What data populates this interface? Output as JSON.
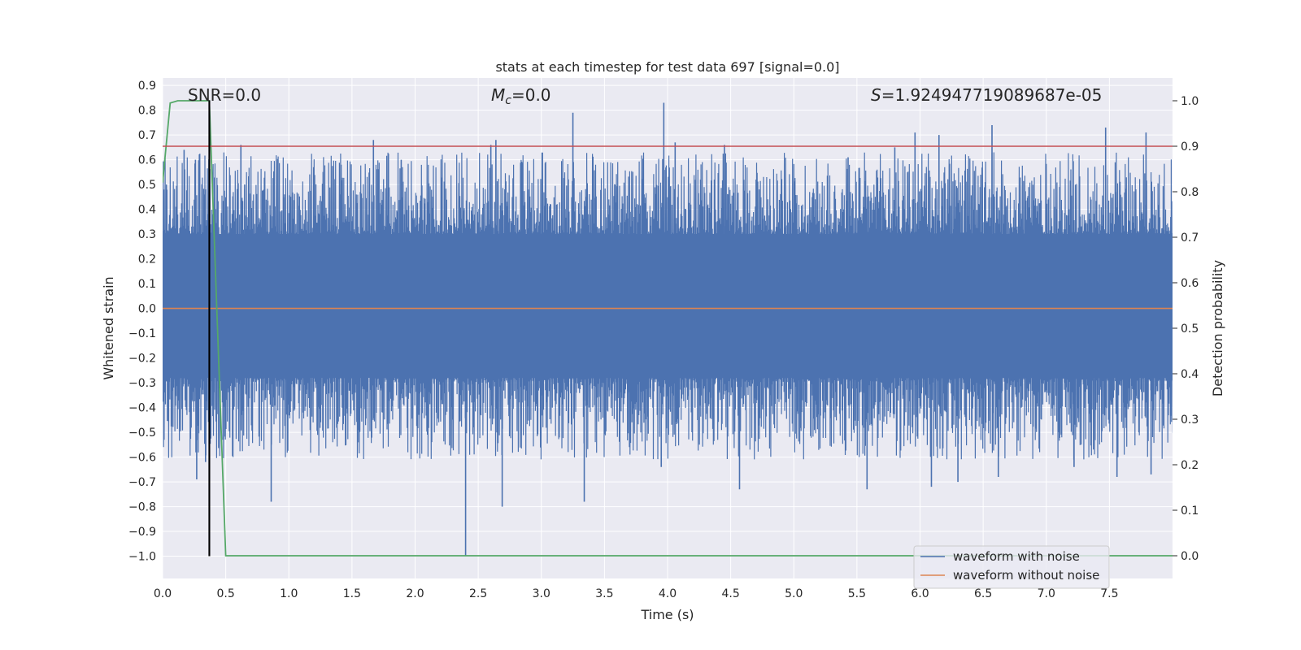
{
  "chart_data": {
    "type": "line",
    "title": "stats at each timestep for test data 697 [signal=0.0]",
    "xlabel": "Time (s)",
    "ylabel": "Whitened strain",
    "y2label": "Detection probability",
    "xlim": [
      0.0,
      8.0
    ],
    "ylim": [
      -1.09,
      0.93
    ],
    "y2lim": [
      -0.05,
      1.05
    ],
    "xticks": [
      0.0,
      0.5,
      1.0,
      1.5,
      2.0,
      2.5,
      3.0,
      3.5,
      4.0,
      4.5,
      5.0,
      5.5,
      6.0,
      6.5,
      7.0,
      7.5
    ],
    "xtick_labels": [
      "0.0",
      "0.5",
      "1.0",
      "1.5",
      "2.0",
      "2.5",
      "3.0",
      "3.5",
      "4.0",
      "4.5",
      "5.0",
      "5.5",
      "6.0",
      "6.5",
      "7.0",
      "7.5"
    ],
    "yticks": [
      0.9,
      0.8,
      0.7,
      0.6,
      0.5,
      0.4,
      0.3,
      0.2,
      0.1,
      0.0,
      -0.1,
      -0.2,
      -0.3,
      -0.4,
      -0.5,
      -0.6,
      -0.7,
      -0.8,
      -0.9,
      -1.0
    ],
    "ytick_labels": [
      "0.9",
      "0.8",
      "0.7",
      "0.6",
      "0.5",
      "0.4",
      "0.3",
      "0.2",
      "0.1",
      "0.0",
      "−0.1",
      "−0.2",
      "−0.3",
      "−0.4",
      "−0.5",
      "−0.6",
      "−0.7",
      "−0.8",
      "−0.9",
      "−1.0"
    ],
    "y2ticks": [
      1.0,
      0.9,
      0.8,
      0.7,
      0.6,
      0.5,
      0.4,
      0.3,
      0.2,
      0.1,
      0.0
    ],
    "y2tick_labels": [
      "1.0",
      "0.9",
      "0.8",
      "0.7",
      "0.6",
      "0.5",
      "0.4",
      "0.3",
      "0.2",
      "0.1",
      "0.0"
    ],
    "annotations": {
      "snr": "SNR=0.0",
      "mc_symbol": "M",
      "mc_sub": "c",
      "mc_value": "=0.0",
      "s_symbol": "S",
      "s_value": "=1.924947719089687e-05"
    },
    "series": [
      {
        "name": "waveform with noise",
        "color": "#4c72b0",
        "kind": "noise",
        "duration": 8.0,
        "band_low": -0.28,
        "band_high": 0.3,
        "peaks": [
          [
            0.03,
            0.5
          ],
          [
            0.17,
            0.64
          ],
          [
            0.26,
            0.6
          ],
          [
            0.62,
            0.66
          ],
          [
            0.65,
            0.5
          ],
          [
            1.67,
            0.68
          ],
          [
            1.89,
            0.6
          ],
          [
            2.64,
            0.68
          ],
          [
            2.6,
            0.66
          ],
          [
            3.25,
            0.79
          ],
          [
            3.97,
            0.83
          ],
          [
            4.06,
            0.67
          ],
          [
            4.45,
            0.66
          ],
          [
            5.43,
            0.61
          ],
          [
            5.8,
            0.65
          ],
          [
            5.96,
            0.71
          ],
          [
            6.15,
            0.7
          ],
          [
            6.57,
            0.74
          ],
          [
            7.47,
            0.73
          ],
          [
            7.79,
            0.71
          ]
        ],
        "troughs": [
          [
            0.27,
            -0.69
          ],
          [
            0.34,
            -0.62
          ],
          [
            0.86,
            -0.78
          ],
          [
            2.4,
            -1.0
          ],
          [
            2.69,
            -0.8
          ],
          [
            3.34,
            -0.78
          ],
          [
            3.95,
            -0.64
          ],
          [
            4.57,
            -0.73
          ],
          [
            5.58,
            -0.73
          ],
          [
            6.09,
            -0.72
          ],
          [
            6.3,
            -0.7
          ],
          [
            6.62,
            -0.68
          ],
          [
            7.22,
            -0.64
          ],
          [
            7.56,
            -0.68
          ],
          [
            7.83,
            -0.67
          ]
        ]
      },
      {
        "name": "waveform without noise",
        "color": "#dd8452",
        "kind": "flat",
        "value": 0.0
      },
      {
        "name": "detection probability",
        "color": "#55a868",
        "axis": "right",
        "x": [
          0.0,
          0.06,
          0.12,
          0.25,
          0.37,
          0.5,
          8.0
        ],
        "y": [
          0.82,
          0.995,
          1.0,
          1.0,
          1.0,
          0.0,
          0.0
        ]
      },
      {
        "name": "threshold",
        "color": "#c44e52",
        "axis": "right",
        "kind": "hline",
        "value": 0.9
      },
      {
        "name": "event marker",
        "color": "#000000",
        "kind": "vline",
        "x": 0.37,
        "y_from": -1.0,
        "y_to": 0.84
      }
    ],
    "legend": {
      "position": "bottom-right",
      "entries": [
        "waveform with noise",
        "waveform without noise"
      ]
    }
  }
}
